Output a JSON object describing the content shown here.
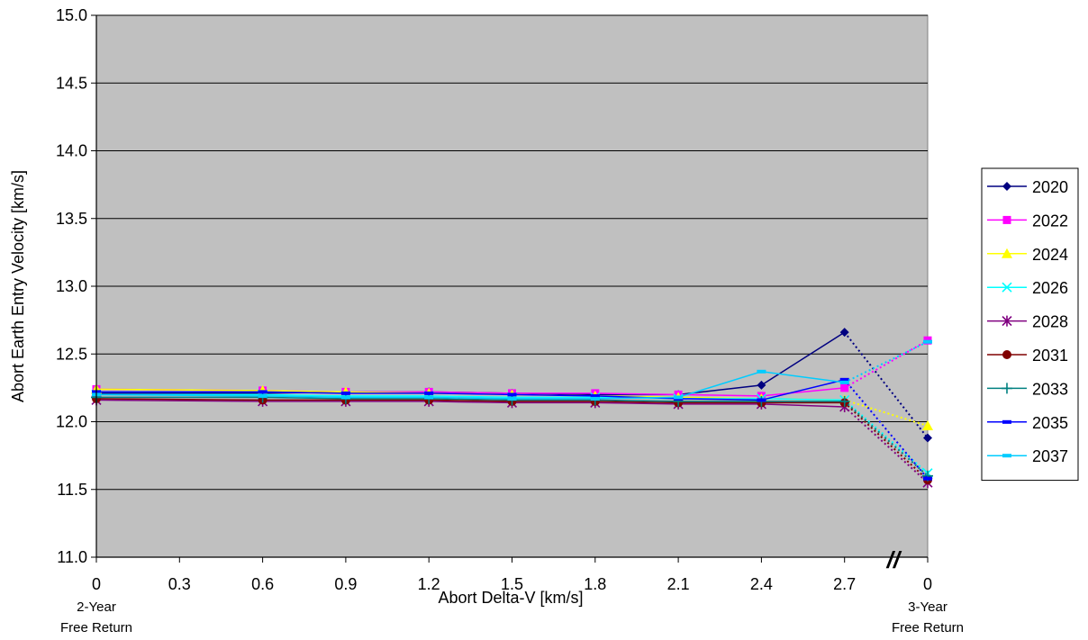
{
  "chart_data": {
    "type": "line",
    "title": "",
    "xlabel": "Abort Delta-V [km/s]",
    "ylabel": "Abort Earth Entry Velocity [km/s]",
    "ylim": [
      11.0,
      15.0
    ],
    "yticks": [
      "11.0",
      "11.5",
      "12.0",
      "12.5",
      "13.0",
      "13.5",
      "14.0",
      "14.5",
      "15.0"
    ],
    "categories": [
      "0",
      "0.3",
      "0.6",
      "0.9",
      "1.2",
      "1.5",
      "1.8",
      "2.1",
      "2.4",
      "2.7",
      "0"
    ],
    "category_notes": {
      "first": [
        "2-Year",
        "Free Return"
      ],
      "last": [
        "3-Year",
        "Free Return"
      ]
    },
    "axis_break_symbol": "//",
    "grid": "horizontal",
    "legend_position": "right",
    "plot_background": "#C0C0C0",
    "final_segment_style": "dotted",
    "series": [
      {
        "name": "2020",
        "color": "#000080",
        "marker": "diamond",
        "points": [
          [
            0,
            12.21
          ],
          [
            2,
            12.21
          ],
          [
            3,
            12.22
          ],
          [
            4,
            12.22
          ],
          [
            5,
            12.21
          ],
          [
            6,
            12.2
          ],
          [
            7,
            12.2
          ],
          [
            8,
            12.27
          ],
          [
            9,
            12.66
          ],
          [
            10,
            11.88
          ]
        ]
      },
      {
        "name": "2022",
        "color": "#FF00FF",
        "marker": "square",
        "points": [
          [
            0,
            12.24
          ],
          [
            2,
            12.23
          ],
          [
            3,
            12.22
          ],
          [
            4,
            12.22
          ],
          [
            5,
            12.21
          ],
          [
            6,
            12.21
          ],
          [
            7,
            12.2
          ],
          [
            8,
            12.19
          ],
          [
            9,
            12.25
          ],
          [
            10,
            12.6
          ]
        ]
      },
      {
        "name": "2024",
        "color": "#FFFF00",
        "marker": "triangle",
        "points": [
          [
            0,
            12.24
          ],
          [
            2,
            12.23
          ],
          [
            3,
            12.22
          ],
          [
            4,
            12.21
          ],
          [
            5,
            12.2
          ],
          [
            6,
            12.19
          ],
          [
            7,
            12.18
          ],
          [
            8,
            12.17
          ],
          [
            9,
            12.16
          ],
          [
            10,
            11.97
          ]
        ]
      },
      {
        "name": "2026",
        "color": "#00FFFF",
        "marker": "x",
        "points": [
          [
            0,
            12.2
          ],
          [
            2,
            12.2
          ],
          [
            3,
            12.19
          ],
          [
            4,
            12.19
          ],
          [
            5,
            12.18
          ],
          [
            6,
            12.18
          ],
          [
            7,
            12.17
          ],
          [
            8,
            12.17
          ],
          [
            9,
            12.16
          ],
          [
            10,
            11.62
          ]
        ]
      },
      {
        "name": "2028",
        "color": "#800080",
        "marker": "star",
        "points": [
          [
            0,
            12.16
          ],
          [
            2,
            12.15
          ],
          [
            3,
            12.15
          ],
          [
            4,
            12.15
          ],
          [
            5,
            12.14
          ],
          [
            6,
            12.14
          ],
          [
            7,
            12.13
          ],
          [
            8,
            12.13
          ],
          [
            9,
            12.11
          ],
          [
            10,
            11.55
          ]
        ]
      },
      {
        "name": "2031",
        "color": "#800000",
        "marker": "circle",
        "points": [
          [
            0,
            12.17
          ],
          [
            2,
            12.16
          ],
          [
            3,
            12.16
          ],
          [
            4,
            12.16
          ],
          [
            5,
            12.15
          ],
          [
            6,
            12.15
          ],
          [
            7,
            12.14
          ],
          [
            8,
            12.14
          ],
          [
            9,
            12.14
          ],
          [
            10,
            11.57
          ]
        ]
      },
      {
        "name": "2033",
        "color": "#008080",
        "marker": "plus",
        "points": [
          [
            0,
            12.18
          ],
          [
            2,
            12.18
          ],
          [
            3,
            12.17
          ],
          [
            4,
            12.17
          ],
          [
            5,
            12.16
          ],
          [
            6,
            12.16
          ],
          [
            7,
            12.15
          ],
          [
            8,
            12.15
          ],
          [
            9,
            12.15
          ],
          [
            10,
            11.6
          ]
        ]
      },
      {
        "name": "2035",
        "color": "#0000FF",
        "marker": "dash",
        "points": [
          [
            0,
            12.22
          ],
          [
            2,
            12.22
          ],
          [
            3,
            12.21
          ],
          [
            4,
            12.21
          ],
          [
            5,
            12.2
          ],
          [
            6,
            12.19
          ],
          [
            7,
            12.17
          ],
          [
            8,
            12.16
          ],
          [
            9,
            12.31
          ],
          [
            10,
            11.58
          ]
        ]
      },
      {
        "name": "2037",
        "color": "#00CCFF",
        "marker": "dash",
        "points": [
          [
            0,
            12.2
          ],
          [
            2,
            12.19
          ],
          [
            3,
            12.18
          ],
          [
            4,
            12.18
          ],
          [
            5,
            12.17
          ],
          [
            6,
            12.17
          ],
          [
            7,
            12.18
          ],
          [
            8,
            12.37
          ],
          [
            9,
            12.29
          ],
          [
            10,
            12.59
          ]
        ]
      }
    ]
  }
}
